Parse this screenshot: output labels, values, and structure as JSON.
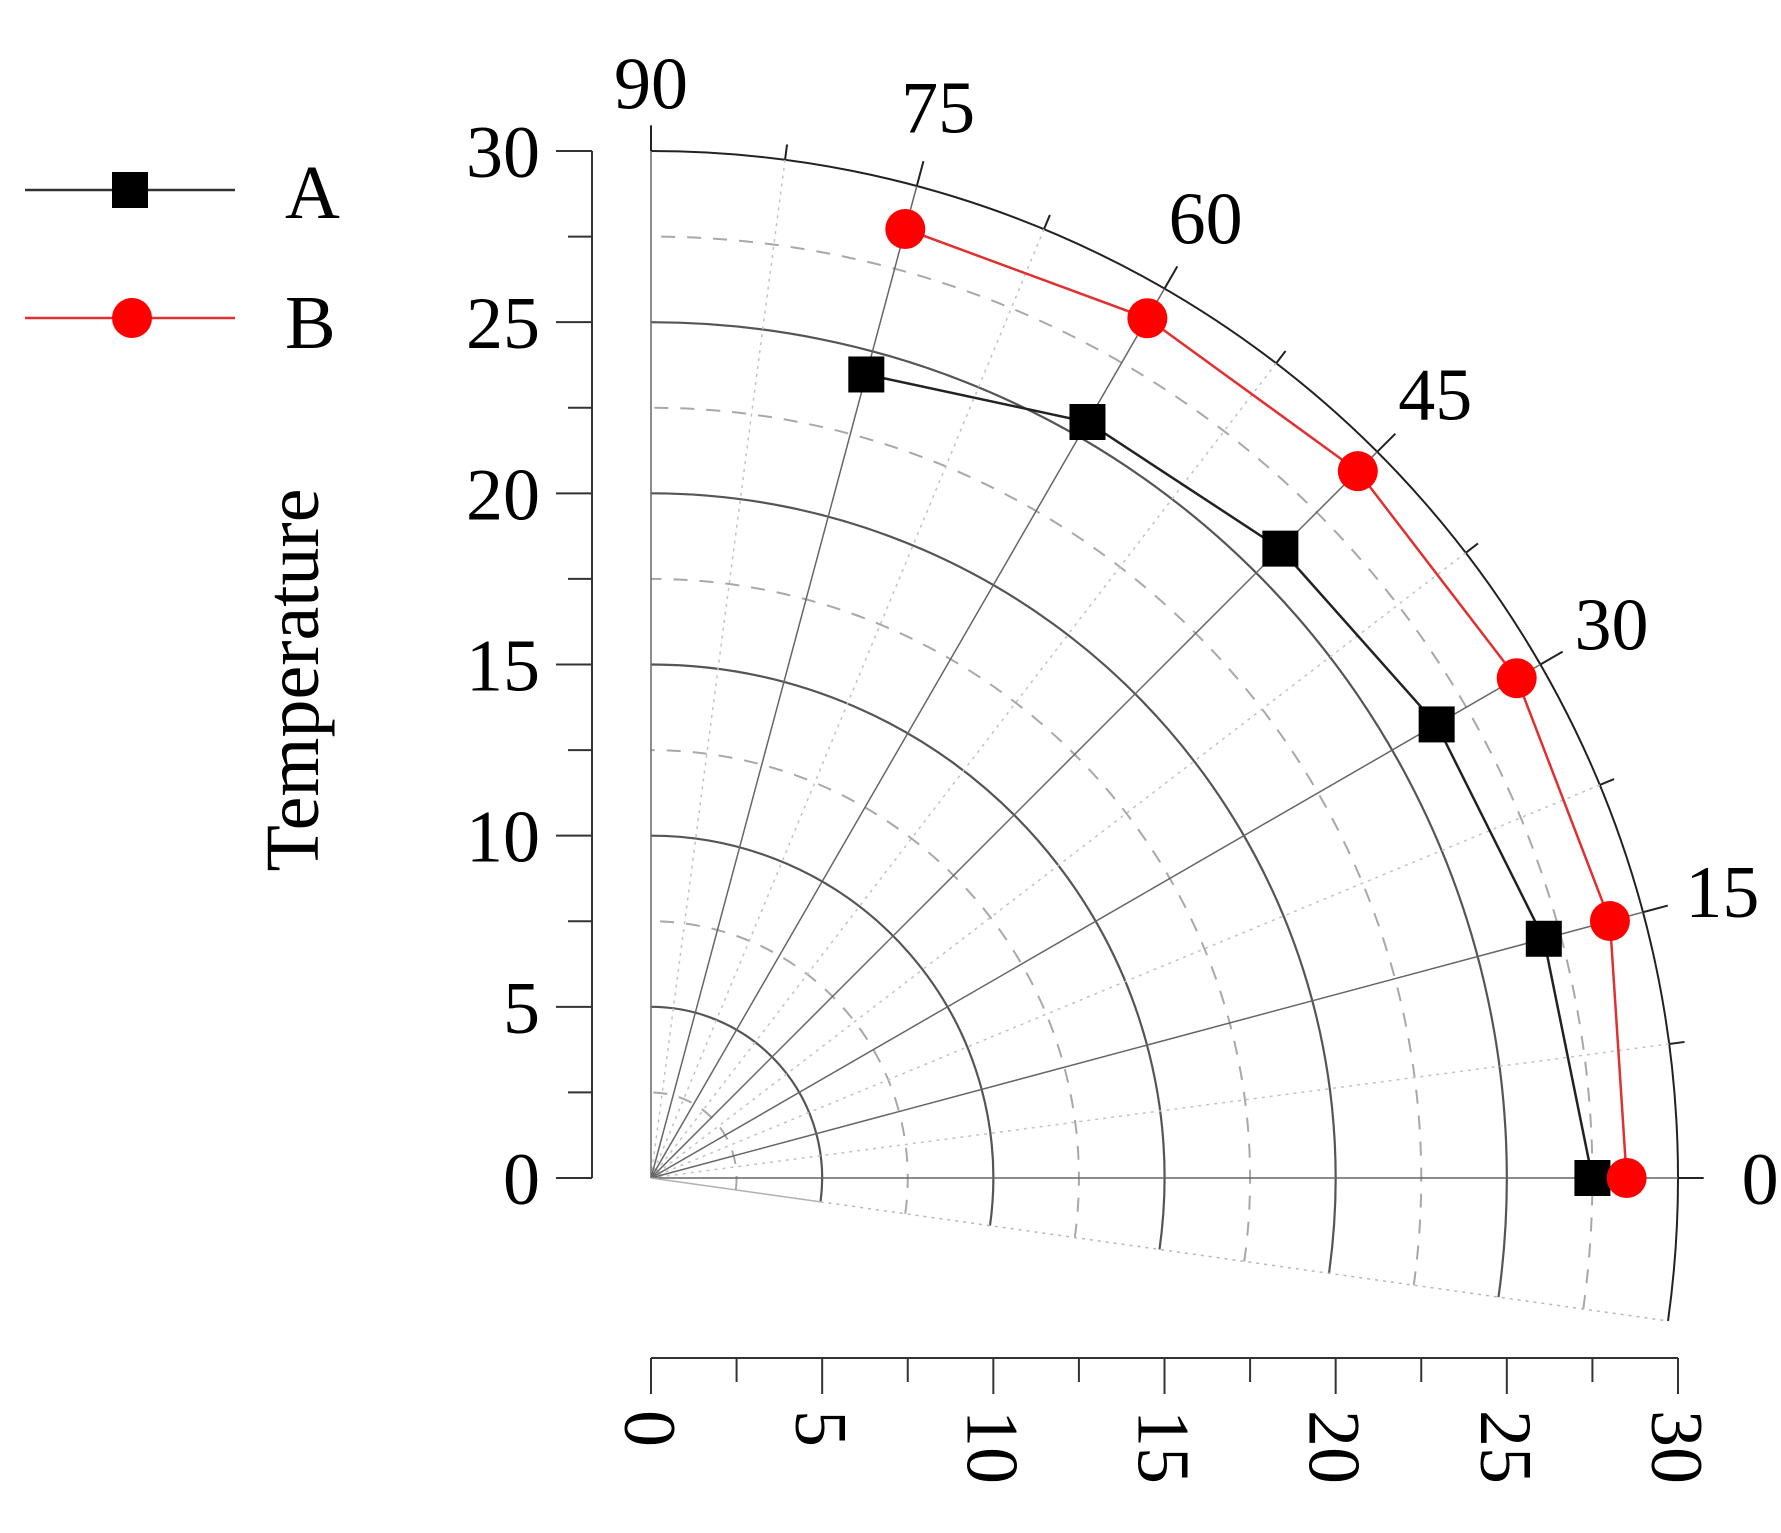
{
  "chart_data": {
    "type": "polar-line",
    "ylabel": "Temperature",
    "radial_range": [
      0,
      30
    ],
    "angle_range_deg": [
      0,
      90
    ],
    "angle_ticks": [
      0,
      15,
      30,
      45,
      60,
      75,
      90
    ],
    "angle_tick_labels": [
      "0",
      "15",
      "30",
      "45",
      "60",
      "75",
      "90"
    ],
    "radial_ticks": [
      0,
      5,
      10,
      15,
      20,
      25,
      30
    ],
    "radial_tick_labels": [
      "0",
      "5",
      "10",
      "15",
      "20",
      "25",
      "30"
    ],
    "grid": true,
    "legend_position": "top-left",
    "angles": [
      0,
      15,
      30,
      45,
      60,
      75
    ],
    "series": [
      {
        "name": "A",
        "marker": "square",
        "color": "#000000",
        "values": [
          27.5,
          27.0,
          26.5,
          26.0,
          25.5,
          24.3
        ]
      },
      {
        "name": "B",
        "marker": "circle",
        "color": "#ff0000",
        "values": [
          28.5,
          29.0,
          29.2,
          29.2,
          29.0,
          28.7
        ]
      }
    ]
  }
}
